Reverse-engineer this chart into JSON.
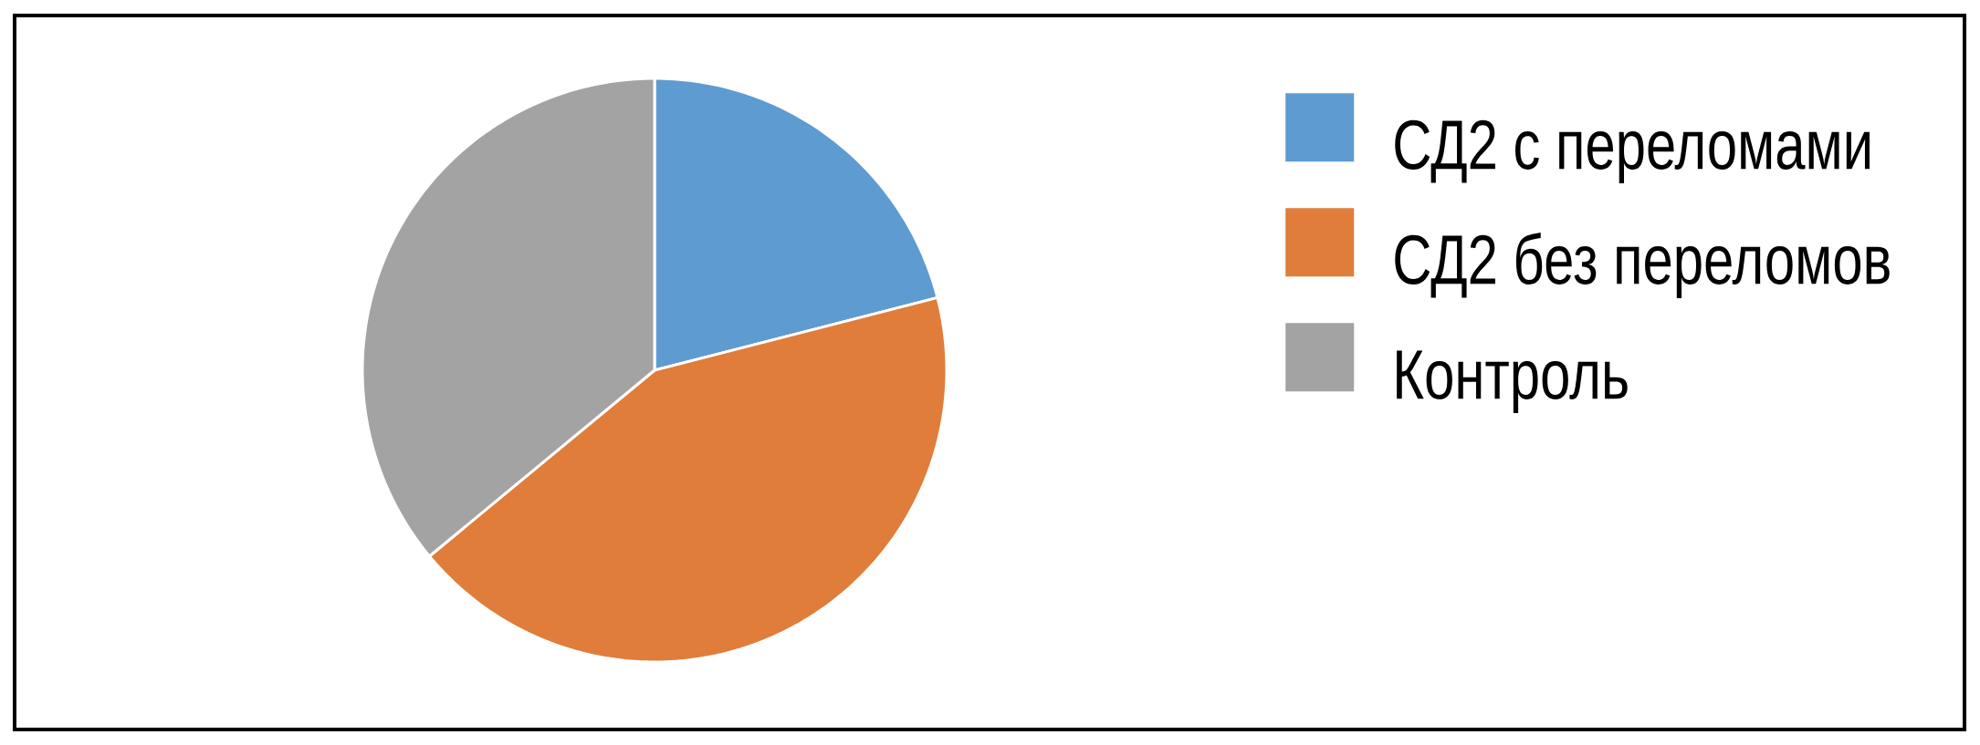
{
  "chart_data": {
    "type": "pie",
    "categories": [
      "СД2 с переломами",
      "СД2 без переломов",
      "Контроль"
    ],
    "values": [
      21,
      43,
      36
    ],
    "colors": [
      "#5e9bd1",
      "#e07d3a",
      "#a3a3a3"
    ],
    "legend": "right"
  }
}
